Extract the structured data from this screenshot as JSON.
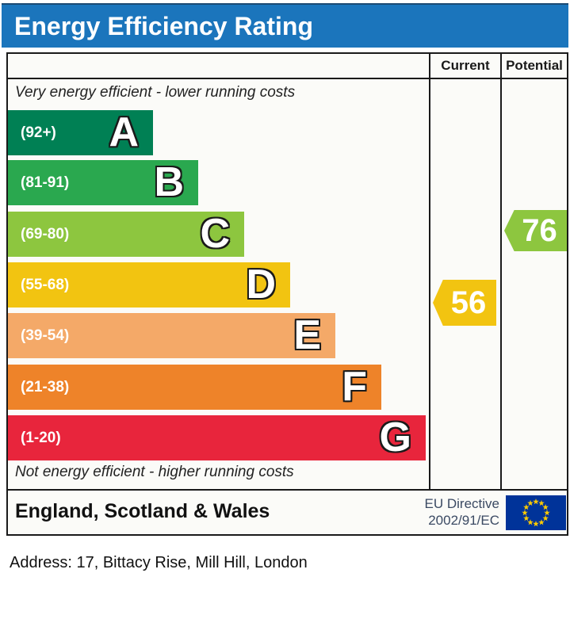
{
  "header": {
    "title": "Energy Efficiency Rating",
    "bg_color": "#1b75bc"
  },
  "table": {
    "columns": {
      "current_label": "Current",
      "potential_label": "Potential"
    },
    "top_note": "Very energy efficient - lower running costs",
    "bottom_note": "Not energy efficient - higher running costs"
  },
  "chart_data": {
    "type": "bar",
    "title": "Energy Efficiency Rating",
    "bands": [
      {
        "letter": "A",
        "range_label": "(92+)",
        "min": 92,
        "max": 100,
        "color": "#008054"
      },
      {
        "letter": "B",
        "range_label": "(81-91)",
        "min": 81,
        "max": 91,
        "color": "#2aa84f"
      },
      {
        "letter": "C",
        "range_label": "(69-80)",
        "min": 69,
        "max": 80,
        "color": "#8dc63f"
      },
      {
        "letter": "D",
        "range_label": "(55-68)",
        "min": 55,
        "max": 68,
        "color": "#f2c411"
      },
      {
        "letter": "E",
        "range_label": "(39-54)",
        "min": 39,
        "max": 54,
        "color": "#f4a968"
      },
      {
        "letter": "F",
        "range_label": "(21-38)",
        "min": 21,
        "max": 38,
        "color": "#ee8329"
      },
      {
        "letter": "G",
        "range_label": "(1-20)",
        "min": 1,
        "max": 20,
        "color": "#e8253c"
      }
    ],
    "current": {
      "value": 56,
      "band": "D",
      "color": "#f2c411"
    },
    "potential": {
      "value": 76,
      "band": "C",
      "color": "#8dc63f"
    }
  },
  "footer": {
    "region": "England, Scotland & Wales",
    "directive_line1": "EU Directive",
    "directive_line2": "2002/91/EC",
    "eu_flag": {
      "bg": "#003399",
      "star_color": "#ffcc00"
    }
  },
  "address": {
    "text": "Address: 17, Bittacy Rise, Mill Hill, London"
  }
}
